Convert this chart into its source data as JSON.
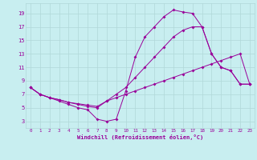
{
  "bg_color": "#c8eef0",
  "grid_color": "#b0d8d8",
  "line_color": "#990099",
  "marker_color": "#990099",
  "xlabel": "Windchill (Refroidissement éolien,°C)",
  "xlabel_color": "#990099",
  "tick_color": "#990099",
  "xlim": [
    -0.5,
    23.5
  ],
  "ylim": [
    2,
    20.5
  ],
  "yticks": [
    3,
    5,
    7,
    9,
    11,
    13,
    15,
    17,
    19
  ],
  "xticks": [
    0,
    1,
    2,
    3,
    4,
    5,
    6,
    7,
    8,
    9,
    10,
    11,
    12,
    13,
    14,
    15,
    16,
    17,
    18,
    19,
    20,
    21,
    22,
    23
  ],
  "series": [
    {
      "x": [
        0,
        1,
        2,
        3,
        4,
        5,
        6,
        7,
        8,
        9,
        10,
        11,
        12,
        13,
        14,
        15,
        16,
        17,
        18,
        19,
        20,
        21,
        22,
        23
      ],
      "y": [
        8,
        7,
        6.5,
        6.2,
        5.8,
        5.6,
        5.4,
        5.2,
        6.0,
        6.5,
        7.0,
        7.5,
        8.0,
        8.5,
        9.0,
        9.5,
        10.0,
        10.5,
        11.0,
        11.5,
        12.0,
        12.5,
        13.0,
        8.5
      ]
    },
    {
      "x": [
        0,
        1,
        2,
        3,
        4,
        5,
        6,
        7,
        8,
        9,
        10,
        11,
        12,
        13,
        14,
        15,
        16,
        17,
        18,
        19,
        20,
        21,
        22,
        23
      ],
      "y": [
        8,
        7,
        6.5,
        6.0,
        5.5,
        5.0,
        4.7,
        3.3,
        3.0,
        3.3,
        7.5,
        12.5,
        15.5,
        17.0,
        18.5,
        19.5,
        19.2,
        19.0,
        17.0,
        13.0,
        11.0,
        10.5,
        8.5,
        8.5
      ]
    },
    {
      "x": [
        0,
        1,
        2,
        3,
        4,
        5,
        6,
        7,
        8,
        9,
        10,
        11,
        12,
        13,
        14,
        15,
        16,
        17,
        18,
        19,
        20,
        21,
        22,
        23
      ],
      "y": [
        8,
        7,
        6.5,
        6.2,
        5.8,
        5.5,
        5.2,
        5.0,
        6.0,
        7.0,
        8.0,
        9.5,
        11.0,
        12.5,
        14.0,
        15.5,
        16.5,
        17.0,
        17.0,
        13.0,
        11.0,
        10.5,
        8.5,
        8.5
      ]
    }
  ]
}
